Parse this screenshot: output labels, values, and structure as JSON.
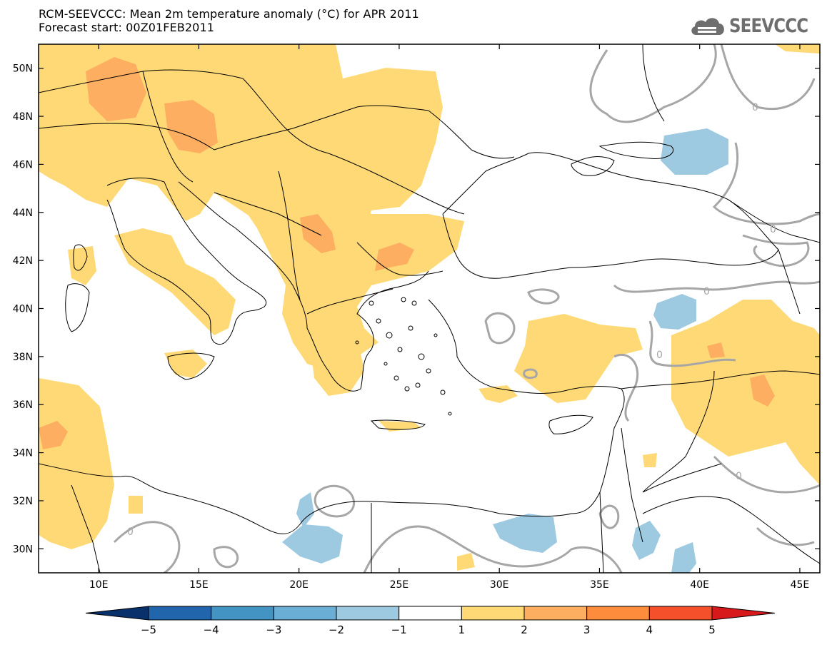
{
  "header": {
    "title_line1": "RCM-SEEVCCC: Mean 2m temperature anomaly (°C) for APR 2011",
    "title_line2": "Forecast start: 00Z01FEB2011"
  },
  "logo": {
    "text": "SEEVCCC",
    "icon": "cloud-icon",
    "color": "#6e6e6e"
  },
  "map": {
    "region": "Eastern Mediterranean",
    "lat_labels": [
      "50N",
      "48N",
      "46N",
      "44N",
      "42N",
      "40N",
      "38N",
      "36N",
      "34N",
      "32N",
      "30N"
    ],
    "lon_labels": [
      "10E",
      "15E",
      "20E",
      "25E",
      "30E",
      "35E",
      "40E",
      "45E"
    ],
    "lat_range": [
      29,
      51
    ],
    "lon_range": [
      7,
      46
    ],
    "contour_label": "0",
    "contour_color": "#a6a6a6",
    "coastline_color": "#000000"
  },
  "colorbar": {
    "tick_labels": [
      "-5",
      "-4",
      "-3",
      "-2",
      "-1",
      "1",
      "2",
      "3",
      "4",
      "5"
    ],
    "bins": [
      {
        "color": "#08306b"
      },
      {
        "color": "#2166ac"
      },
      {
        "color": "#4393c3"
      },
      {
        "color": "#6aaed6"
      },
      {
        "color": "#9ecae1"
      },
      {
        "color": "#ffffff"
      },
      {
        "color": "#fed976"
      },
      {
        "color": "#fdae61"
      },
      {
        "color": "#fd8d3c"
      },
      {
        "color": "#f4502b"
      },
      {
        "color": "#d7191c"
      }
    ]
  }
}
